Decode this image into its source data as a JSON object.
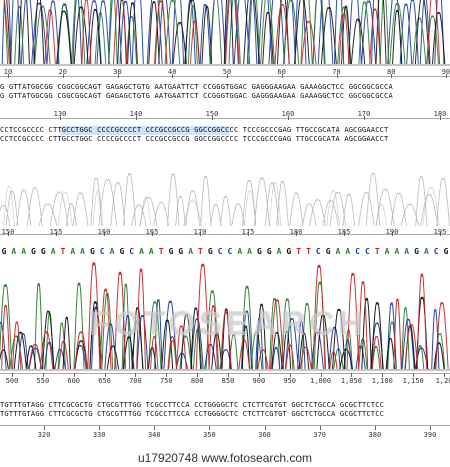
{
  "caption": "u17920748   www.fotosearch.com",
  "watermark": "FOTOSEARCH",
  "colors": {
    "A": "#2e7d32",
    "C": "#1a3a9e",
    "G": "#111111",
    "T": "#c62828",
    "highlight": "#cfe2f7"
  },
  "panel2": {
    "ruler_labels": [
      "10",
      "20",
      "30",
      "40",
      "50",
      "60",
      "70",
      "80",
      "90"
    ],
    "seq_top": [
      "G GTTATGGCGG CGGCGGCAGT GAGAGCTGTG AATGAATTCT CCGGGTGGAC GAGGGAAGAA GAAAGGCTCC GGCGGCGCCA",
      "G GTTATGGCGG CGGCGGCAGT GAGAGCTGTG AATGAATTCT CCGGGTGGAC GAGGGAAGAA GAAAGGCTCC GGCGGCGCCA"
    ],
    "ruler2_labels": [
      "130",
      "140",
      "150",
      "160",
      "170",
      "180"
    ],
    "seq_bottom": [
      "CCTCCGCCCC CTTGCCTGGC CCCCGCCCCT CCCGCCGCCG GGCCGGCCCC TCCCGCCCGAG TTGCCGCATA AGCGGAACCT",
      "CCTCCGCCCC CTTGCCTGGC CCCCGCCCCT CCCGCCGCCG GGCCGGCCCC TCCCGCCCGAG TTGCCGCATA AGCGGAACCT"
    ]
  },
  "panel4": {
    "ruler_labels": [
      "150",
      "155",
      "160",
      "165",
      "170",
      "175",
      "180",
      "185",
      "190",
      "195"
    ],
    "bases": "GAAGGATAAGCAGCAATGGATGCCAAGGAGTTCGAACCTAAAGACG"
  },
  "panel5": {
    "ruler_labels": [
      "500",
      "550",
      "600",
      "650",
      "700",
      "750",
      "800",
      "850",
      "900",
      "950",
      "1,000",
      "1,050",
      "1,100",
      "1,150",
      "1,20"
    ],
    "seq": [
      "TGTTTGTAGG CTTCGCGCTG CTGCGTTTGG TCGCCTTCCA CCTGGGGCTC CTCTTCGTGT GGCTCTGCCA GCGCTTCTCC",
      "TGTTTGTAGG CTTCGCGCTG CTGCGTTTGG TCGCCTTCCA CCTGGGGCTC CTCTTCGTGT GGCTCTGCCA GCGCTTCTCC"
    ],
    "ruler2_labels": [
      "320",
      "330",
      "340",
      "350",
      "360",
      "370",
      "380",
      "390"
    ]
  }
}
